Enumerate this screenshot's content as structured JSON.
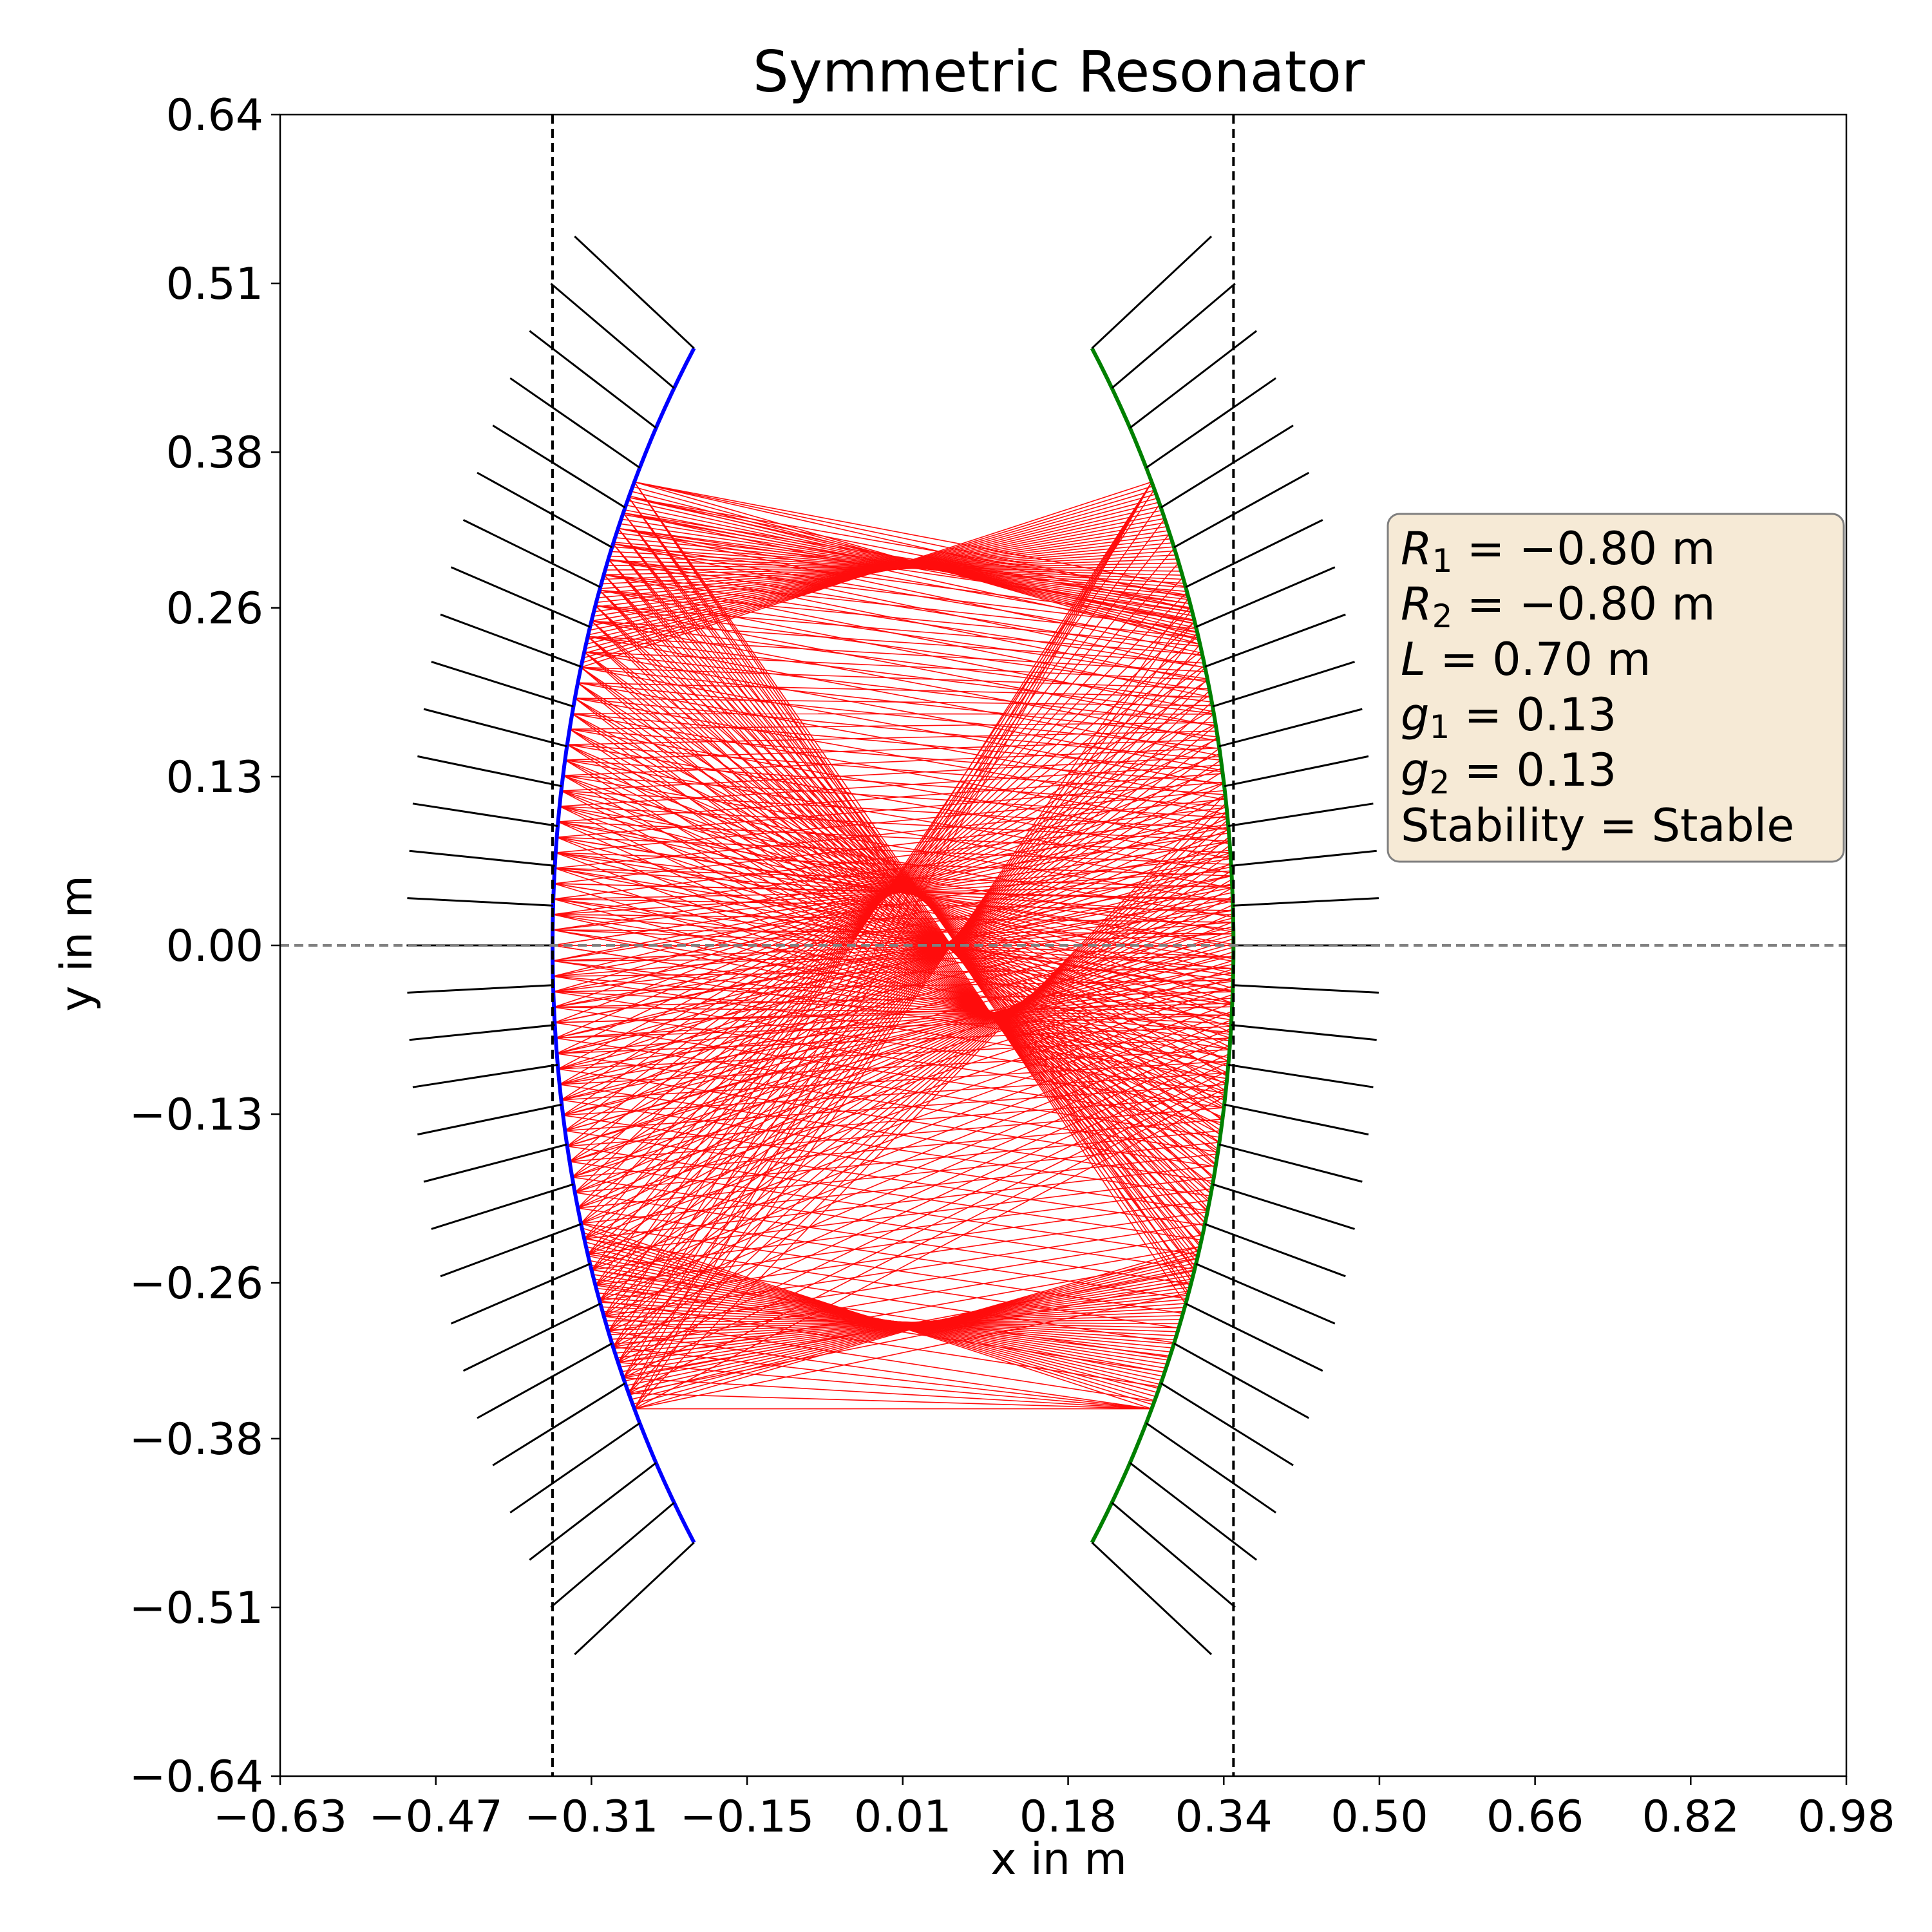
{
  "chart_data": {
    "type": "line",
    "title": "Symmetric Resonator",
    "xlabel": "x in m",
    "ylabel": "y in m",
    "xlim": [
      -0.63,
      0.98
    ],
    "ylim": [
      -0.64,
      0.64
    ],
    "xticks": [
      "−0.63",
      "−0.47",
      "−0.31",
      "−0.15",
      "0.01",
      "0.18",
      "0.34",
      "0.50",
      "0.66",
      "0.82",
      "0.98"
    ],
    "xtick_values": [
      -0.63,
      -0.47,
      -0.31,
      -0.15,
      0.01,
      0.18,
      0.34,
      0.5,
      0.66,
      0.82,
      0.98
    ],
    "yticks": [
      "0.64",
      "0.51",
      "0.38",
      "0.26",
      "0.13",
      "0.00",
      "−0.13",
      "−0.26",
      "−0.38",
      "−0.51",
      "−0.64"
    ],
    "ytick_values": [
      0.64,
      0.51,
      0.38,
      0.26,
      0.13,
      0.0,
      -0.13,
      -0.26,
      -0.38,
      -0.51,
      -0.64
    ],
    "grid": false,
    "mirror_1": {
      "R": -0.8,
      "x_vertex": -0.35,
      "half_aperture": 0.46,
      "color": "#0000ff"
    },
    "mirror_2": {
      "R": -0.8,
      "x_vertex": 0.35,
      "half_aperture": 0.46,
      "color": "#008000"
    },
    "mirror_planes_x": [
      -0.35,
      0.35
    ],
    "optical_axis_y": 0.0,
    "ray_region": {
      "edge_half_height": 0.357,
      "waist_half_height": 0.268,
      "color": "#ff0000"
    },
    "params_box": {
      "lines": [
        {
          "sym": "R",
          "sub": "1",
          "rest": " = −0.80 m"
        },
        {
          "sym": "R",
          "sub": "2",
          "rest": " = −0.80 m"
        },
        {
          "sym": "L",
          "sub": "",
          "rest": " = 0.70 m"
        },
        {
          "sym": "g",
          "sub": "1",
          "rest": " = 0.13"
        },
        {
          "sym": "g",
          "sub": "2",
          "rest": " = 0.13"
        },
        {
          "sym": "",
          "sub": "",
          "rest": "Stability = Stable"
        }
      ],
      "placement": "right-center",
      "facecolor": "#f6ead6",
      "edgecolor": "#7f7f7f"
    }
  }
}
